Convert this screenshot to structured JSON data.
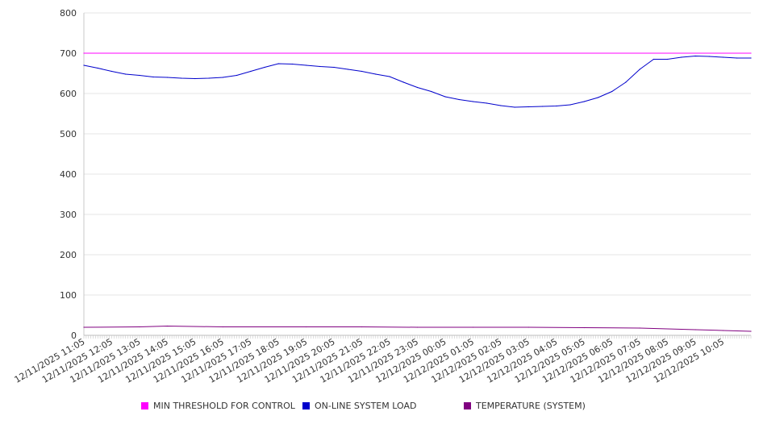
{
  "chart_data": {
    "type": "line",
    "title": "",
    "xlabel": "",
    "ylabel": "",
    "ylim": [
      0,
      800
    ],
    "yticks": [
      0,
      100,
      200,
      300,
      400,
      500,
      600,
      700,
      800
    ],
    "grid": true,
    "legend_position": "bottom",
    "x_start": "12/11/2025 11:05",
    "x_end": "12/12/2025 11:05",
    "x_tick_labels": [
      "12/11/2025 11:05",
      "12/11/2025 12:05",
      "12/11/2025 13:05",
      "12/11/2025 14:05",
      "12/11/2025 15:05",
      "12/11/2025 16:05",
      "12/11/2025 17:05",
      "12/11/2025 18:05",
      "12/11/2025 19:05",
      "12/11/2025 20:05",
      "12/11/2025 21:05",
      "12/11/2025 22:05",
      "12/11/2025 23:05",
      "12/12/2025 00:05",
      "12/12/2025 01:05",
      "12/12/2025 02:05",
      "12/12/2025 03:05",
      "12/12/2025 04:05",
      "12/12/2025 05:05",
      "12/12/2025 06:05",
      "12/12/2025 07:05",
      "12/12/2025 08:05",
      "12/12/2025 09:05",
      "12/12/2025 10:05"
    ],
    "series": [
      {
        "name": "MIN THRESHOLD FOR CONTROL",
        "color": "#ff00ff",
        "x": [
          "12/11/2025 11:05",
          "12/12/2025 11:05"
        ],
        "y": [
          700,
          700
        ]
      },
      {
        "name": "ON-LINE SYSTEM LOAD",
        "color": "#0000cc",
        "x": [
          "12/11/2025 11:05",
          "12/11/2025 11:35",
          "12/11/2025 12:05",
          "12/11/2025 12:35",
          "12/11/2025 13:05",
          "12/11/2025 13:35",
          "12/11/2025 14:05",
          "12/11/2025 14:35",
          "12/11/2025 15:05",
          "12/11/2025 15:35",
          "12/11/2025 16:05",
          "12/11/2025 16:35",
          "12/11/2025 17:05",
          "12/11/2025 17:35",
          "12/11/2025 18:05",
          "12/11/2025 18:35",
          "12/11/2025 19:05",
          "12/11/2025 19:35",
          "12/11/2025 20:05",
          "12/11/2025 20:35",
          "12/11/2025 21:05",
          "12/11/2025 21:35",
          "12/11/2025 22:05",
          "12/11/2025 22:35",
          "12/11/2025 23:05",
          "12/11/2025 23:35",
          "12/12/2025 00:05",
          "12/12/2025 00:35",
          "12/12/2025 01:05",
          "12/12/2025 01:35",
          "12/12/2025 02:05",
          "12/12/2025 02:35",
          "12/12/2025 03:05",
          "12/12/2025 03:35",
          "12/12/2025 04:05",
          "12/12/2025 04:35",
          "12/12/2025 05:05",
          "12/12/2025 05:35",
          "12/12/2025 06:05",
          "12/12/2025 06:35",
          "12/12/2025 07:05",
          "12/12/2025 07:35",
          "12/12/2025 08:05",
          "12/12/2025 08:35",
          "12/12/2025 09:05",
          "12/12/2025 09:35",
          "12/12/2025 10:05",
          "12/12/2025 10:35",
          "12/12/2025 11:05"
        ],
        "y": [
          670,
          663,
          655,
          648,
          645,
          641,
          640,
          638,
          637,
          638,
          640,
          645,
          655,
          665,
          674,
          673,
          670,
          667,
          665,
          660,
          655,
          648,
          642,
          628,
          615,
          605,
          592,
          585,
          580,
          576,
          570,
          566,
          567,
          568,
          569,
          572,
          580,
          590,
          605,
          628,
          660,
          685,
          685,
          690,
          693,
          692,
          690,
          688,
          688
        ]
      },
      {
        "name": "TEMPERATURE (SYSTEM)",
        "color": "#800080",
        "x": [
          "12/11/2025 11:05",
          "12/11/2025 13:05",
          "12/11/2025 14:05",
          "12/11/2025 16:05",
          "12/11/2025 19:05",
          "12/11/2025 21:05",
          "12/11/2025 23:05",
          "12/12/2025 01:05",
          "12/12/2025 03:05",
          "12/12/2025 05:05",
          "12/12/2025 07:05",
          "12/12/2025 09:05",
          "12/12/2025 10:05",
          "12/12/2025 11:05"
        ],
        "y": [
          20,
          21,
          23,
          21,
          21,
          21,
          20,
          20,
          20,
          19,
          18,
          14,
          12,
          10
        ]
      }
    ]
  }
}
